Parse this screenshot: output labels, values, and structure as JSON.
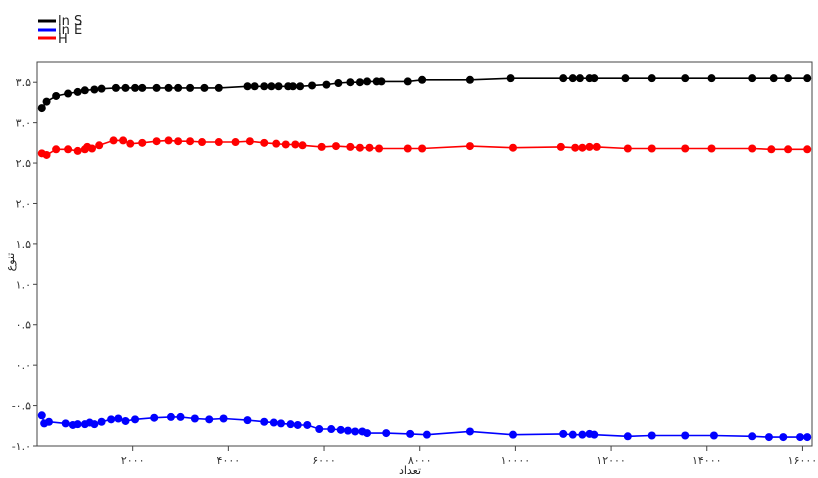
{
  "chart_data": {
    "type": "line",
    "xlabel": "تعداد",
    "ylabel": "تنوع",
    "xlim": [
      0,
      16200
    ],
    "ylim": [
      -1.0,
      3.75
    ],
    "xticks": [
      2000,
      4000,
      6000,
      8000,
      10000,
      12000,
      14000,
      16000
    ],
    "xtick_labels": [
      "۲۰۰۰",
      "۴۰۰۰",
      "۶۰۰۰",
      "۸۰۰۰",
      "۱۰۰۰۰",
      "۱۲۰۰۰",
      "۱۴۰۰۰",
      "۱۶۰۰۰"
    ],
    "yticks": [
      -1.0,
      -0.5,
      0.0,
      0.5,
      1.0,
      1.5,
      2.0,
      2.5,
      3.0,
      3.5
    ],
    "ytick_labels": [
      "-۱.۰",
      "-۰.۵",
      "۰.۰",
      "۰.۵",
      "۱.۰",
      "۱.۵",
      "۲.۰",
      "۲.۵",
      "۳.۰",
      "۳.۵"
    ],
    "grid": false,
    "legend_position": "top-left",
    "series": [
      {
        "name": "ln S",
        "color": "#000000",
        "points": [
          [
            100,
            3.18
          ],
          [
            200,
            3.26
          ],
          [
            400,
            3.33
          ],
          [
            650,
            3.36
          ],
          [
            850,
            3.38
          ],
          [
            1000,
            3.4
          ],
          [
            1200,
            3.41
          ],
          [
            1350,
            3.42
          ],
          [
            1650,
            3.43
          ],
          [
            1850,
            3.43
          ],
          [
            2050,
            3.43
          ],
          [
            2200,
            3.43
          ],
          [
            2500,
            3.43
          ],
          [
            2750,
            3.43
          ],
          [
            2950,
            3.43
          ],
          [
            3200,
            3.43
          ],
          [
            3500,
            3.43
          ],
          [
            3800,
            3.43
          ],
          [
            4400,
            3.45
          ],
          [
            4550,
            3.45
          ],
          [
            4750,
            3.45
          ],
          [
            4900,
            3.45
          ],
          [
            5050,
            3.45
          ],
          [
            5250,
            3.45
          ],
          [
            5350,
            3.45
          ],
          [
            5500,
            3.45
          ],
          [
            5750,
            3.46
          ],
          [
            6050,
            3.47
          ],
          [
            6300,
            3.49
          ],
          [
            6550,
            3.5
          ],
          [
            6750,
            3.5
          ],
          [
            6900,
            3.51
          ],
          [
            7100,
            3.51
          ],
          [
            7200,
            3.51
          ],
          [
            7750,
            3.51
          ],
          [
            8050,
            3.53
          ],
          [
            9050,
            3.53
          ],
          [
            9900,
            3.55
          ],
          [
            11000,
            3.55
          ],
          [
            11200,
            3.55
          ],
          [
            11350,
            3.55
          ],
          [
            11550,
            3.55
          ],
          [
            11650,
            3.55
          ],
          [
            12300,
            3.55
          ],
          [
            12850,
            3.55
          ],
          [
            13550,
            3.55
          ],
          [
            14100,
            3.55
          ],
          [
            14950,
            3.55
          ],
          [
            15400,
            3.55
          ],
          [
            15700,
            3.55
          ],
          [
            16100,
            3.55
          ]
        ]
      },
      {
        "name": "ln E",
        "color": "#0000ff",
        "points": [
          [
            100,
            -0.62
          ],
          [
            150,
            -0.72
          ],
          [
            250,
            -0.7
          ],
          [
            600,
            -0.72
          ],
          [
            750,
            -0.74
          ],
          [
            850,
            -0.73
          ],
          [
            1000,
            -0.73
          ],
          [
            1100,
            -0.71
          ],
          [
            1200,
            -0.73
          ],
          [
            1350,
            -0.7
          ],
          [
            1550,
            -0.67
          ],
          [
            1700,
            -0.66
          ],
          [
            1850,
            -0.69
          ],
          [
            2050,
            -0.67
          ],
          [
            2450,
            -0.65
          ],
          [
            2800,
            -0.64
          ],
          [
            3000,
            -0.64
          ],
          [
            3300,
            -0.66
          ],
          [
            3600,
            -0.67
          ],
          [
            3900,
            -0.66
          ],
          [
            4400,
            -0.68
          ],
          [
            4750,
            -0.7
          ],
          [
            4950,
            -0.71
          ],
          [
            5100,
            -0.72
          ],
          [
            5300,
            -0.73
          ],
          [
            5450,
            -0.74
          ],
          [
            5650,
            -0.74
          ],
          [
            5900,
            -0.79
          ],
          [
            6150,
            -0.79
          ],
          [
            6350,
            -0.8
          ],
          [
            6500,
            -0.81
          ],
          [
            6650,
            -0.82
          ],
          [
            6800,
            -0.82
          ],
          [
            6900,
            -0.84
          ],
          [
            7300,
            -0.84
          ],
          [
            7800,
            -0.85
          ],
          [
            8150,
            -0.86
          ],
          [
            9050,
            -0.82
          ],
          [
            9950,
            -0.86
          ],
          [
            11000,
            -0.85
          ],
          [
            11200,
            -0.86
          ],
          [
            11400,
            -0.86
          ],
          [
            11550,
            -0.85
          ],
          [
            11650,
            -0.86
          ],
          [
            12350,
            -0.88
          ],
          [
            12850,
            -0.87
          ],
          [
            13550,
            -0.87
          ],
          [
            14150,
            -0.87
          ],
          [
            14950,
            -0.88
          ],
          [
            15300,
            -0.89
          ],
          [
            15600,
            -0.89
          ],
          [
            15950,
            -0.89
          ],
          [
            16100,
            -0.89
          ]
        ]
      },
      {
        "name": "H",
        "color": "#ff0000",
        "points": [
          [
            100,
            2.62
          ],
          [
            200,
            2.6
          ],
          [
            400,
            2.67
          ],
          [
            650,
            2.67
          ],
          [
            850,
            2.65
          ],
          [
            1000,
            2.67
          ],
          [
            1050,
            2.7
          ],
          [
            1150,
            2.68
          ],
          [
            1300,
            2.72
          ],
          [
            1600,
            2.78
          ],
          [
            1800,
            2.78
          ],
          [
            1950,
            2.74
          ],
          [
            2200,
            2.75
          ],
          [
            2500,
            2.77
          ],
          [
            2750,
            2.78
          ],
          [
            2950,
            2.77
          ],
          [
            3200,
            2.77
          ],
          [
            3450,
            2.76
          ],
          [
            3800,
            2.76
          ],
          [
            4150,
            2.76
          ],
          [
            4450,
            2.77
          ],
          [
            4750,
            2.75
          ],
          [
            5000,
            2.74
          ],
          [
            5200,
            2.73
          ],
          [
            5400,
            2.73
          ],
          [
            5550,
            2.72
          ],
          [
            5950,
            2.7
          ],
          [
            6250,
            2.71
          ],
          [
            6550,
            2.7
          ],
          [
            6750,
            2.69
          ],
          [
            6950,
            2.69
          ],
          [
            7150,
            2.68
          ],
          [
            7750,
            2.68
          ],
          [
            8050,
            2.68
          ],
          [
            9050,
            2.71
          ],
          [
            9950,
            2.69
          ],
          [
            10950,
            2.7
          ],
          [
            11250,
            2.69
          ],
          [
            11400,
            2.69
          ],
          [
            11550,
            2.7
          ],
          [
            11700,
            2.7
          ],
          [
            12350,
            2.68
          ],
          [
            12850,
            2.68
          ],
          [
            13550,
            2.68
          ],
          [
            14100,
            2.68
          ],
          [
            14950,
            2.68
          ],
          [
            15350,
            2.67
          ],
          [
            15700,
            2.67
          ],
          [
            16100,
            2.67
          ]
        ]
      }
    ]
  }
}
